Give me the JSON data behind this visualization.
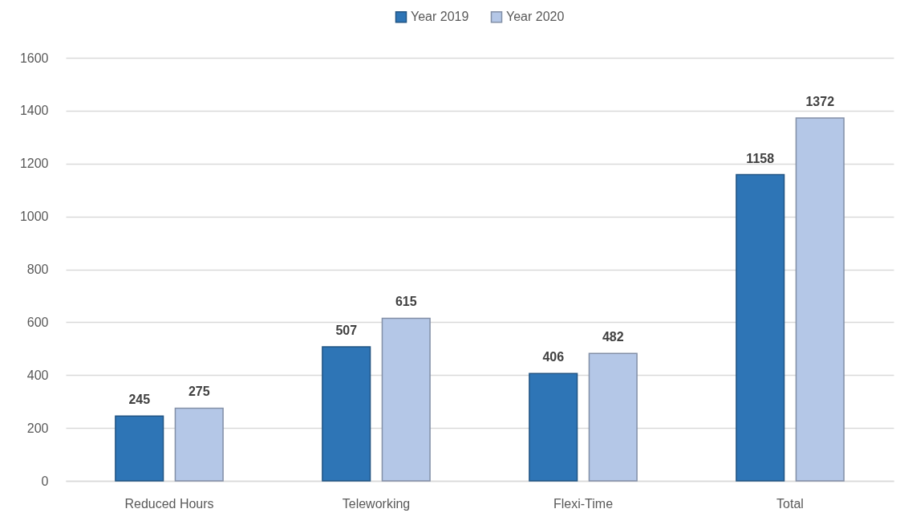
{
  "chart_data": {
    "type": "bar",
    "categories": [
      "Reduced Hours",
      "Teleworking",
      "Flexi-Time",
      "Total"
    ],
    "series": [
      {
        "name": "Year 2019",
        "color": "#2e75b6",
        "values": [
          245,
          507,
          406,
          1158
        ]
      },
      {
        "name": "Year 2020",
        "color": "#b4c7e7",
        "values": [
          275,
          615,
          482,
          1372
        ]
      }
    ],
    "ylim": [
      0,
      1600
    ],
    "yticks": [
      0,
      200,
      400,
      600,
      800,
      1000,
      1200,
      1400,
      1600
    ],
    "grid": "y",
    "legend": "top",
    "data_labels": true
  }
}
